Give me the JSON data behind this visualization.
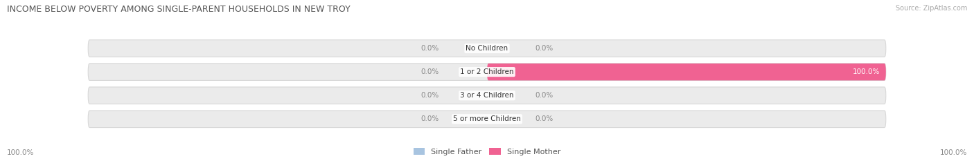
{
  "title": "INCOME BELOW POVERTY AMONG SINGLE-PARENT HOUSEHOLDS IN NEW TROY",
  "source": "Source: ZipAtlas.com",
  "categories": [
    "No Children",
    "1 or 2 Children",
    "3 or 4 Children",
    "5 or more Children"
  ],
  "single_father": [
    0.0,
    0.0,
    0.0,
    0.0
  ],
  "single_mother": [
    0.0,
    100.0,
    0.0,
    0.0
  ],
  "father_color": "#a8c4e0",
  "mother_color": "#f06292",
  "bar_bg_color": "#ebebeb",
  "bar_bg_edge": "#d8d8d8",
  "title_color": "#555555",
  "source_color": "#aaaaaa",
  "label_color": "#888888",
  "value_color_dark": "#888888",
  "value_color_light": "#ffffff",
  "legend_father": "Single Father",
  "legend_mother": "Single Mother",
  "axis_label_left": "100.0%",
  "axis_label_right": "100.0%",
  "figsize": [
    14.06,
    2.33
  ],
  "dpi": 100
}
